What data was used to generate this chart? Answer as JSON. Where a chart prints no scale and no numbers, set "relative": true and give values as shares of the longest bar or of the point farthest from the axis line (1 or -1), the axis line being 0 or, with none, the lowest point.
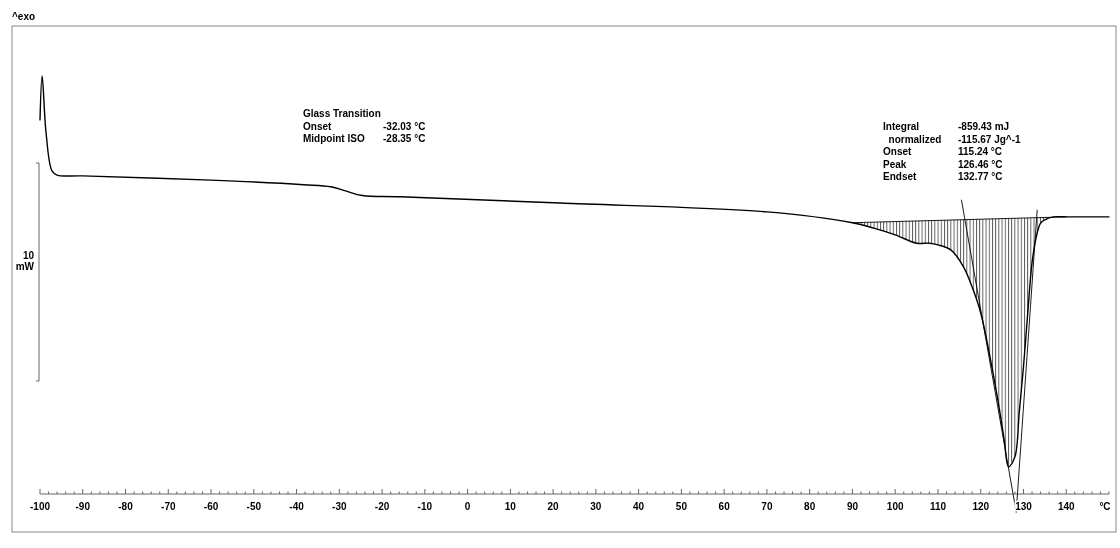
{
  "chart_data": {
    "type": "line",
    "relative": true,
    "xlabel": "°C",
    "ylabel": "10 mW",
    "grid": false,
    "line_style": "solid",
    "xlim": [
      -100,
      150
    ],
    "xticks": [
      -100,
      -90,
      -80,
      -70,
      -60,
      -50,
      -40,
      -30,
      -20,
      -10,
      0,
      10,
      20,
      30,
      40,
      50,
      60,
      70,
      80,
      90,
      100,
      110,
      120,
      130,
      140
    ],
    "annotations": [
      "^exo",
      "Glass Transition",
      "Onset\t-32.03 °C",
      "Midpoint ISO\t-28.35 °C",
      "Integral\t-859.43 mJ",
      "  normalized\t-115.67 Jg^-1",
      "Onset\t115.24 °C",
      "Peak\t126.46 °C",
      "Endset\t132.77 °C"
    ],
    "series": [
      {
        "color": "#000000",
        "x": [
          -100,
          -99.5,
          -98.6,
          -97.2,
          -96,
          -90,
          -60,
          -38.3,
          -32,
          -28.5,
          -24.6,
          -15.8,
          21.6,
          70,
          90,
          95,
          100,
          105,
          108,
          110,
          113,
          116,
          118,
          120,
          122,
          124,
          125.5,
          126.5,
          128,
          129,
          130,
          131,
          132,
          133,
          134,
          135,
          137,
          140,
          150
        ],
        "values": [
          0.895,
          1.0,
          0.866,
          0.773,
          0.763,
          0.761,
          0.751,
          0.74,
          0.735,
          0.725,
          0.714,
          0.711,
          0.696,
          0.675,
          0.649,
          0.636,
          0.62,
          0.6,
          0.6,
          0.596,
          0.584,
          0.543,
          0.495,
          0.433,
          0.337,
          0.225,
          0.129,
          0.065,
          0.089,
          0.194,
          0.304,
          0.433,
          0.553,
          0.615,
          0.648,
          0.656,
          0.663,
          0.663,
          0.663
        ]
      },
      {
        "type": "line",
        "color": "#000000",
        "x": [
          90,
          140
        ],
        "values": [
          0.649,
          0.663
        ]
      },
      {
        "type": "line",
        "color": "#000000",
        "x": [
          115.5,
          128.3
        ],
        "values": [
          0.703,
          -0.043
        ]
      },
      {
        "type": "line",
        "color": "#000000",
        "x": [
          133.2,
          128.3
        ],
        "values": [
          0.679,
          -0.043
        ]
      }
    ]
  }
}
